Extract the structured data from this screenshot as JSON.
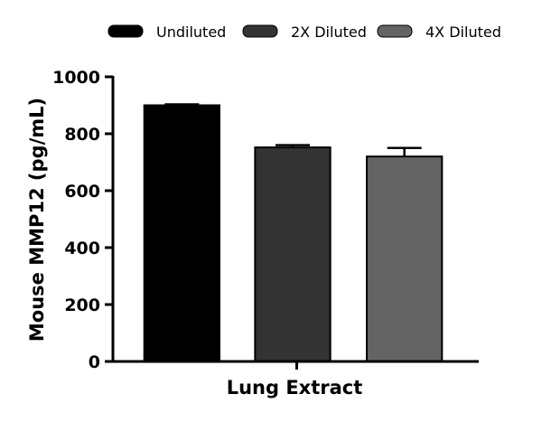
{
  "chart_data": {
    "type": "bar",
    "title": "",
    "xlabel": "Lung Extract",
    "ylabel": "Mouse MMP12 (pg/mL)",
    "ylim": [
      0,
      1000
    ],
    "yticks": [
      "0",
      "200",
      "400",
      "600",
      "800",
      "1000"
    ],
    "grid": false,
    "legend_position": "top",
    "series": [
      {
        "name": "Undiluted",
        "value": 900,
        "error": 3,
        "color": "#000000"
      },
      {
        "name": "2X Diluted",
        "value": 752,
        "error": 8,
        "color": "#333333"
      },
      {
        "name": "4X Diluted",
        "value": 720,
        "error": 30,
        "color": "#646464"
      }
    ]
  }
}
